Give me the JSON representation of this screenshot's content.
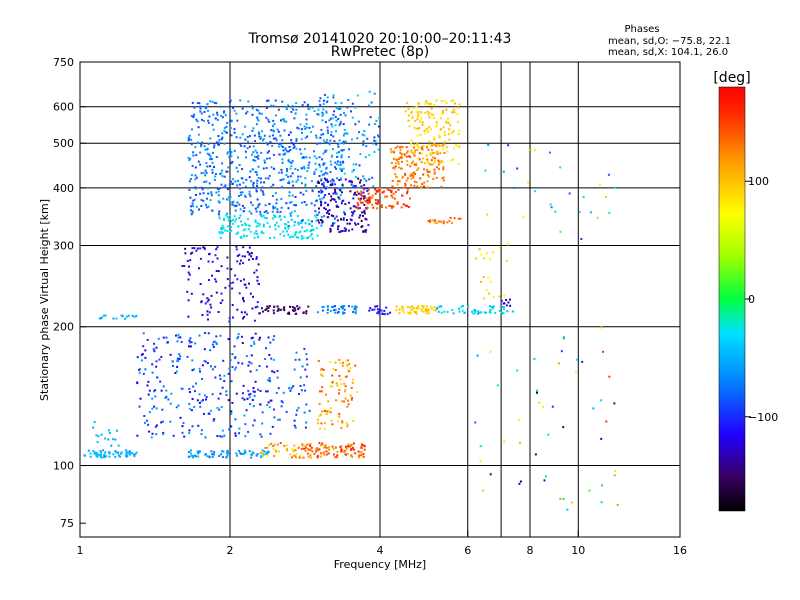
{
  "chart_data": {
    "type": "scatter",
    "title": "Tromsø 20141020 20:10:00–20:11:43",
    "subtitle": "RwPretec (8p)",
    "xlabel": "Frequency [MHz]",
    "ylabel": "Stationary phase Virtual Height [km]",
    "xscale": "log",
    "yscale": "log",
    "xlim": [
      1,
      16
    ],
    "ylim": [
      70,
      750
    ],
    "xticks": [
      1,
      2,
      4,
      6,
      8,
      10,
      16
    ],
    "xtick_labels": [
      "1",
      "2",
      "4",
      "6",
      "8",
      "10",
      "16"
    ],
    "x_gridlines": [
      2,
      4,
      6,
      7,
      8,
      10
    ],
    "yticks": [
      75,
      100,
      200,
      300,
      400,
      500,
      600,
      750
    ],
    "ytick_labels": [
      "75",
      "100",
      "200",
      "300",
      "400",
      "500",
      "600",
      "750"
    ],
    "y_gridlines": [
      100,
      200,
      300,
      400,
      500,
      600
    ],
    "grid": true,
    "legend": {
      "title": "Phases",
      "lines": [
        "mean, sd,O: −75.8, 22.1",
        "mean, sd,X: 104.1, 26.0"
      ],
      "placement": "top-right"
    },
    "colorbar": {
      "label": "[deg]",
      "range": [
        -180,
        180
      ],
      "ticks": [
        100,
        0,
        -100
      ],
      "tick_labels": [
        "100",
        "0",
        "−100"
      ],
      "colormap": "rainbow",
      "placement": "right"
    },
    "point_clusters": [
      {
        "x": [
          1.02,
          1.3
        ],
        "y": [
          104,
          108
        ],
        "n": 60,
        "phase": [
          -60,
          -40
        ]
      },
      {
        "x": [
          1.02,
          1.2
        ],
        "y": [
          110,
          125
        ],
        "n": 15,
        "phase": [
          -60,
          -40
        ]
      },
      {
        "x": [
          1.05,
          1.3
        ],
        "y": [
          208,
          212
        ],
        "n": 15,
        "phase": [
          -60,
          -40
        ]
      },
      {
        "x": [
          1.65,
          2.4
        ],
        "y": [
          104,
          108
        ],
        "n": 70,
        "phase": [
          -75,
          -45
        ]
      },
      {
        "x": [
          2.3,
          2.8
        ],
        "y": [
          104,
          112
        ],
        "n": 40,
        "phase": [
          70,
          150
        ]
      },
      {
        "x": [
          2.8,
          3.8
        ],
        "y": [
          104,
          112
        ],
        "n": 100,
        "phase": [
          110,
          165
        ]
      },
      {
        "x": [
          1.3,
          2.5
        ],
        "y": [
          115,
          195
        ],
        "n": 300,
        "phase": [
          -130,
          -50
        ]
      },
      {
        "x": [
          2.5,
          2.9
        ],
        "y": [
          120,
          180
        ],
        "n": 40,
        "phase": [
          -110,
          -60
        ]
      },
      {
        "x": [
          3.0,
          3.6
        ],
        "y": [
          120,
          170
        ],
        "n": 90,
        "phase": [
          80,
          150
        ]
      },
      {
        "x": [
          1.6,
          2.3
        ],
        "y": [
          205,
          300
        ],
        "n": 130,
        "phase": [
          -140,
          -100
        ]
      },
      {
        "x": [
          2.3,
          2.9
        ],
        "y": [
          213,
          222
        ],
        "n": 40,
        "phase": [
          -165,
          -140
        ]
      },
      {
        "x": [
          3.0,
          3.6
        ],
        "y": [
          213,
          222
        ],
        "n": 40,
        "phase": [
          -90,
          -50
        ]
      },
      {
        "x": [
          3.8,
          4.2
        ],
        "y": [
          213,
          222
        ],
        "n": 20,
        "phase": [
          -130,
          -90
        ]
      },
      {
        "x": [
          4.3,
          5.2
        ],
        "y": [
          213,
          222
        ],
        "n": 50,
        "phase": [
          80,
          110
        ]
      },
      {
        "x": [
          5.2,
          6.5
        ],
        "y": [
          213,
          222
        ],
        "n": 30,
        "phase": [
          -50,
          -20
        ]
      },
      {
        "x": [
          6.5,
          7.5
        ],
        "y": [
          213,
          222
        ],
        "n": 20,
        "phase": [
          -50,
          -20
        ]
      },
      {
        "x": [
          7.0,
          7.5
        ],
        "y": [
          222,
          230
        ],
        "n": 8,
        "phase": [
          -140,
          -110
        ]
      },
      {
        "x": [
          1.65,
          2.6
        ],
        "y": [
          350,
          620
        ],
        "n": 450,
        "phase": [
          -100,
          -50
        ]
      },
      {
        "x": [
          1.9,
          3.0
        ],
        "y": [
          310,
          350
        ],
        "n": 150,
        "phase": [
          -40,
          -20
        ]
      },
      {
        "x": [
          2.6,
          3.4
        ],
        "y": [
          330,
          620
        ],
        "n": 250,
        "phase": [
          -100,
          -40
        ]
      },
      {
        "x": [
          3.0,
          3.8
        ],
        "y": [
          320,
          420
        ],
        "n": 150,
        "phase": [
          -160,
          -100
        ]
      },
      {
        "x": [
          3.0,
          4.0
        ],
        "y": [
          400,
          650
        ],
        "n": 130,
        "phase": [
          -100,
          -30
        ]
      },
      {
        "x": [
          3.6,
          4.6
        ],
        "y": [
          360,
          400
        ],
        "n": 90,
        "phase": [
          130,
          170
        ]
      },
      {
        "x": [
          4.2,
          5.4
        ],
        "y": [
          400,
          500
        ],
        "n": 150,
        "phase": [
          110,
          150
        ]
      },
      {
        "x": [
          4.5,
          5.8
        ],
        "y": [
          450,
          620
        ],
        "n": 150,
        "phase": [
          70,
          110
        ]
      },
      {
        "x": [
          5.0,
          5.8
        ],
        "y": [
          335,
          345
        ],
        "n": 20,
        "phase": [
          110,
          150
        ]
      },
      {
        "x": [
          6.2,
          7.2
        ],
        "y": [
          230,
          300
        ],
        "n": 20,
        "phase": [
          60,
          110
        ]
      },
      {
        "x": [
          6.0,
          12.0
        ],
        "y": [
          80,
          200
        ],
        "n": 50,
        "phase": [
          -180,
          160
        ]
      },
      {
        "x": [
          6.5,
          12.0
        ],
        "y": [
          300,
          500
        ],
        "n": 30,
        "phase": [
          -120,
          80
        ]
      }
    ]
  }
}
